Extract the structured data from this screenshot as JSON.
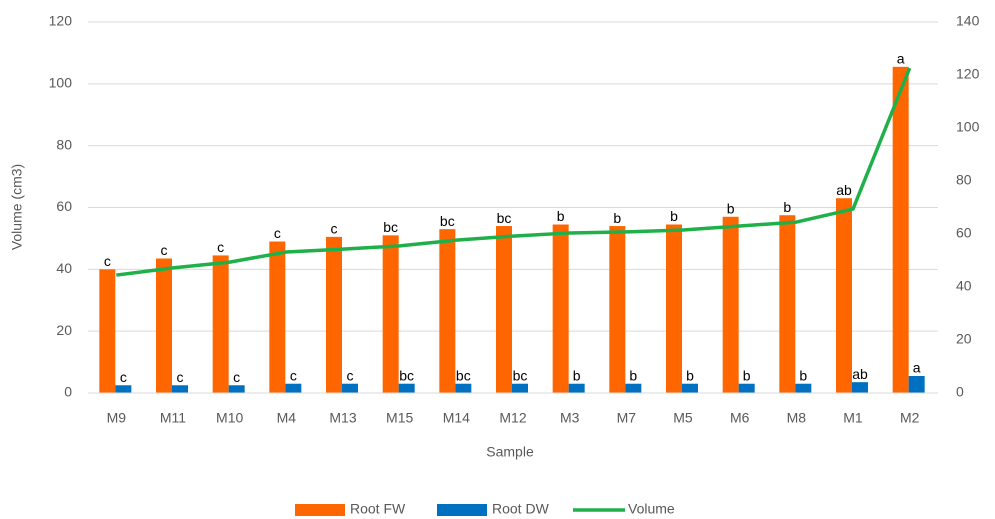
{
  "chart_data": {
    "type": "bar",
    "categories": [
      "M9",
      "M11",
      "M10",
      "M4",
      "M13",
      "M15",
      "M14",
      "M12",
      "M3",
      "M7",
      "M5",
      "M6",
      "M8",
      "M1",
      "M2"
    ],
    "series": [
      {
        "name": "Root FW",
        "color": "#ff6600",
        "type": "bar",
        "values": [
          40,
          43.5,
          44.5,
          49,
          50.5,
          51,
          53,
          54,
          54.5,
          54,
          54.5,
          57,
          57.5,
          63,
          105.5
        ],
        "letters": [
          "c",
          "c",
          "c",
          "c",
          "c",
          "bc",
          "bc",
          "bc",
          "b",
          "b",
          "b",
          "b",
          "b",
          "ab",
          "a"
        ]
      },
      {
        "name": "Root DW",
        "color": "#0070c0",
        "type": "bar",
        "values": [
          2.5,
          2.5,
          2.5,
          3,
          3,
          3,
          3,
          3,
          3,
          3,
          3,
          3,
          3,
          3.5,
          5.5
        ],
        "letters": [
          "c",
          "c",
          "c",
          "c",
          "c",
          "bc",
          "bc",
          "bc",
          "b",
          "b",
          "b",
          "b",
          "b",
          "ab",
          "a"
        ]
      },
      {
        "name": "Volume",
        "color": "#1fb04a",
        "type": "line",
        "axis": "y2",
        "values": [
          44.5,
          47.2,
          49.4,
          53.2,
          54.3,
          55.5,
          57.7,
          59.2,
          60.4,
          60.8,
          61.5,
          63,
          64.5,
          69.4,
          122.6
        ]
      }
    ],
    "xlabel": "Sample",
    "ylabel": "Volume (cm3)",
    "ylim": [
      0,
      120
    ],
    "yticks": [
      0,
      20,
      40,
      60,
      80,
      100,
      120
    ],
    "y2lim": [
      0,
      140
    ],
    "y2ticks": [
      0,
      20,
      40,
      60,
      80,
      100,
      120,
      140
    ],
    "grid": true,
    "legend": "bottom"
  }
}
